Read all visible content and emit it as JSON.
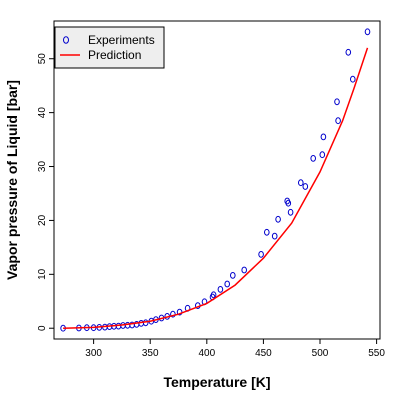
{
  "chart_data": {
    "type": "scatter",
    "title": "",
    "xlabel": "Temperature [K]",
    "ylabel": "Vapor pressure of Liquid [bar]",
    "xlim": [
      265,
      553
    ],
    "ylim": [
      -2,
      57
    ],
    "xticks": [
      300,
      350,
      400,
      450,
      500,
      550
    ],
    "yticks": [
      0,
      10,
      20,
      30,
      40,
      50
    ],
    "grid": false,
    "legend_position": "top-left",
    "series": [
      {
        "name": "Experiments",
        "kind": "points",
        "color": "#0000cc",
        "x": [
          273,
          287,
          294,
          300,
          305,
          310,
          314,
          318,
          322,
          326,
          330,
          334,
          338,
          342,
          346,
          351,
          355,
          360,
          365,
          370,
          376,
          383,
          392,
          398,
          405,
          406,
          412,
          418,
          423,
          433,
          448,
          453,
          460,
          463,
          471,
          472,
          474,
          483,
          487,
          494,
          502,
          503,
          515,
          516,
          525,
          529,
          542
        ],
        "y": [
          0,
          0.05,
          0.1,
          0.1,
          0.15,
          0.2,
          0.3,
          0.35,
          0.4,
          0.5,
          0.55,
          0.6,
          0.7,
          0.9,
          1.0,
          1.3,
          1.6,
          1.9,
          2.2,
          2.6,
          3.0,
          3.7,
          4.2,
          4.9,
          5.8,
          6.2,
          7.2,
          8.2,
          9.8,
          10.8,
          13.7,
          17.8,
          17.1,
          20.2,
          23.6,
          23.2,
          21.5,
          27.0,
          26.3,
          31.5,
          32.2,
          35.5,
          42.0,
          38.5,
          51.2,
          46.2,
          55.0
        ]
      },
      {
        "name": "Prediction",
        "kind": "line",
        "color": "#ff0000",
        "x": [
          273,
          300,
          325,
          350,
          375,
          400,
          425,
          450,
          475,
          500,
          520,
          530,
          542
        ],
        "y": [
          0.0,
          0.15,
          0.6,
          1.3,
          2.6,
          4.6,
          8.0,
          13.0,
          19.5,
          29.0,
          38.5,
          44.5,
          52.0
        ]
      }
    ]
  }
}
